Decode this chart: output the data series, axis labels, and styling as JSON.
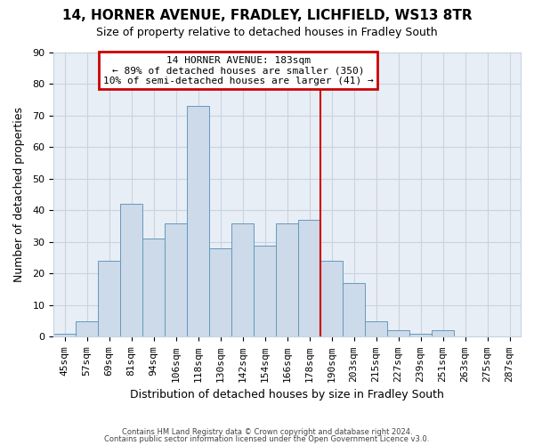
{
  "title": "14, HORNER AVENUE, FRADLEY, LICHFIELD, WS13 8TR",
  "subtitle": "Size of property relative to detached houses in Fradley South",
  "xlabel": "Distribution of detached houses by size in Fradley South",
  "ylabel": "Number of detached properties",
  "bar_color": "#ccdaea",
  "bar_edge_color": "#6699bb",
  "background_color": "#ffffff",
  "plot_bg_color": "#e8eef5",
  "categories": [
    "45sqm",
    "57sqm",
    "69sqm",
    "81sqm",
    "94sqm",
    "106sqm",
    "118sqm",
    "130sqm",
    "142sqm",
    "154sqm",
    "166sqm",
    "178sqm",
    "190sqm",
    "203sqm",
    "215sqm",
    "227sqm",
    "239sqm",
    "251sqm",
    "263sqm",
    "275sqm",
    "287sqm"
  ],
  "values": [
    1,
    5,
    24,
    42,
    31,
    36,
    73,
    28,
    36,
    29,
    36,
    37,
    24,
    17,
    5,
    2,
    1,
    2,
    0,
    0,
    0
  ],
  "ylim": [
    0,
    90
  ],
  "yticks": [
    0,
    10,
    20,
    30,
    40,
    50,
    60,
    70,
    80,
    90
  ],
  "vline_index": 12,
  "annotation_text": "14 HORNER AVENUE: 183sqm\n← 89% of detached houses are smaller (350)\n10% of semi-detached houses are larger (41) →",
  "annotation_box_color": "#ffffff",
  "annotation_box_edge": "#cc0000",
  "vline_color": "#cc0000",
  "footer_line1": "Contains HM Land Registry data © Crown copyright and database right 2024.",
  "footer_line2": "Contains public sector information licensed under the Open Government Licence v3.0.",
  "grid_color": "#c8d4e0",
  "title_fontsize": 11,
  "subtitle_fontsize": 9,
  "axis_label_fontsize": 9,
  "tick_fontsize": 8,
  "annotation_fontsize": 8,
  "footer_fontsize": 6
}
